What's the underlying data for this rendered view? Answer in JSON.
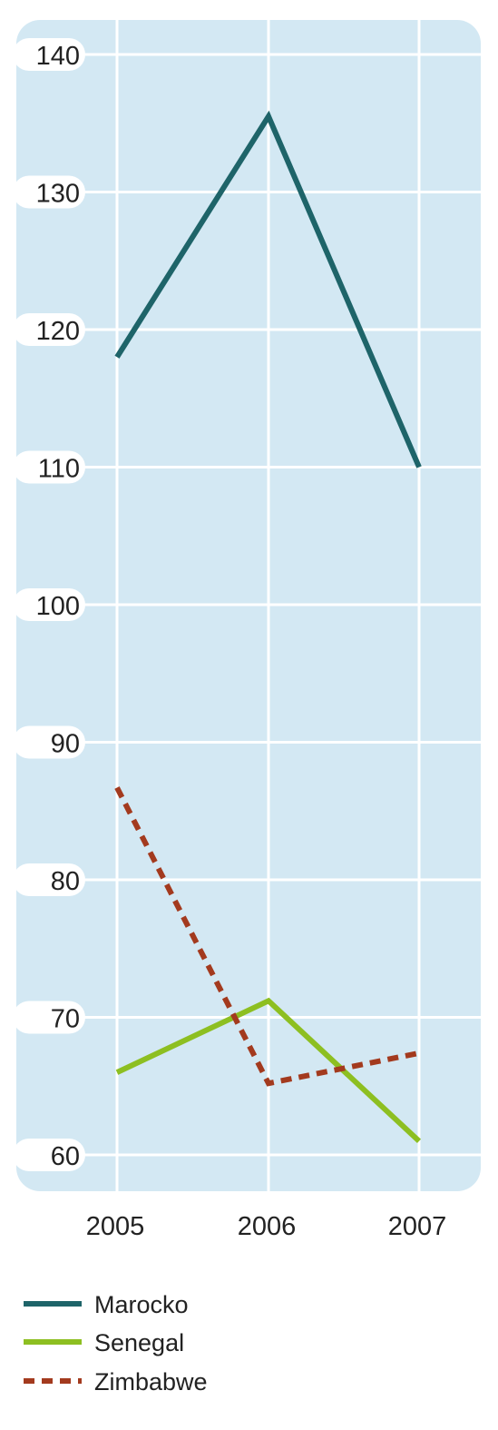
{
  "chart_data": {
    "type": "line",
    "categories": [
      "2005",
      "2006",
      "2007"
    ],
    "ylim": [
      60,
      140
    ],
    "yticks": [
      60,
      70,
      80,
      90,
      100,
      110,
      120,
      130,
      140
    ],
    "grid": true,
    "legend_position": "bottom-left",
    "series": [
      {
        "name": "Marocko",
        "values": [
          118,
          135.5,
          110
        ],
        "color": "#1e6469",
        "style": "solid"
      },
      {
        "name": "Senegal",
        "values": [
          66,
          71.2,
          61
        ],
        "color": "#8dbf21",
        "style": "solid"
      },
      {
        "name": "Zimbabwe",
        "values": [
          86.7,
          65.2,
          67.4
        ],
        "color": "#a33a1e",
        "style": "dashed"
      }
    ]
  },
  "colors": {
    "plot_background": "#d3e8f3",
    "grid": "#ffffff"
  }
}
